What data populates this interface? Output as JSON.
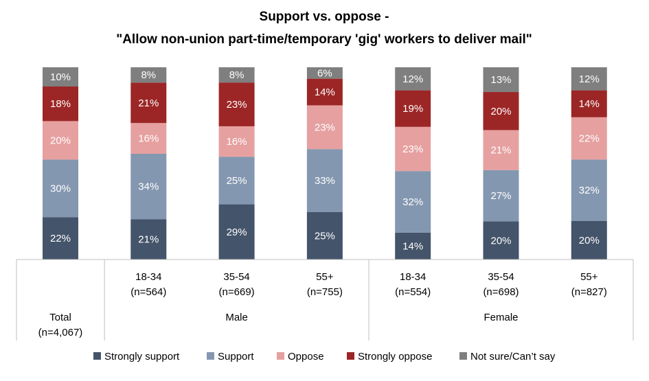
{
  "chart_data": {
    "type": "bar",
    "stacked": true,
    "title_line1": "Support vs. oppose -",
    "title_line2": "\"Allow non-union part-time/temporary 'gig' workers to deliver mail\"",
    "categories": [
      {
        "label": "Total",
        "n": "(n=4,067)"
      },
      {
        "label": "18-34",
        "n": "(n=564)"
      },
      {
        "label": "35-54",
        "n": "(n=669)"
      },
      {
        "label": "55+",
        "n": "(n=755)"
      },
      {
        "label": "18-34",
        "n": "(n=554)"
      },
      {
        "label": "35-54",
        "n": "(n=698)"
      },
      {
        "label": "55+",
        "n": "(n=827)"
      }
    ],
    "groups": [
      {
        "label": "Male",
        "categories": [
          1,
          2,
          3
        ]
      },
      {
        "label": "Female",
        "categories": [
          4,
          5,
          6
        ]
      }
    ],
    "series": [
      {
        "name": "Strongly support",
        "color": "#44546a",
        "values": [
          22,
          21,
          29,
          25,
          14,
          20,
          20
        ]
      },
      {
        "name": "Support",
        "color": "#8497b0",
        "values": [
          30,
          34,
          25,
          33,
          32,
          27,
          32
        ]
      },
      {
        "name": "Oppose",
        "color": "#e6a0a0",
        "values": [
          20,
          16,
          16,
          23,
          23,
          21,
          22
        ]
      },
      {
        "name": "Strongly oppose",
        "color": "#9c2626",
        "values": [
          18,
          21,
          23,
          14,
          19,
          20,
          14
        ]
      },
      {
        "name": "Not sure/Can’t say",
        "color": "#7f7f7f",
        "values": [
          10,
          8,
          8,
          6,
          12,
          13,
          12
        ]
      }
    ],
    "value_suffix": "%",
    "legend_position": "bottom",
    "grid": false
  }
}
